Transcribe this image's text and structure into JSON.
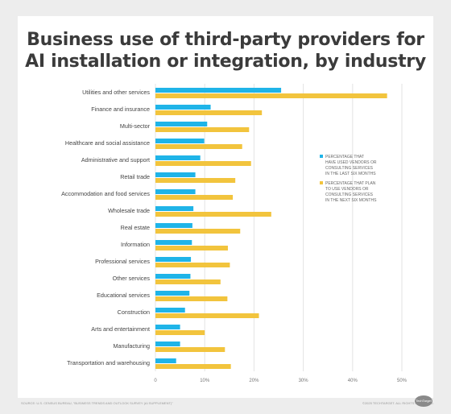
{
  "chart_data": {
    "type": "bar",
    "title_lines": [
      "Business use of third-party providers for",
      "AI installation or integration, by industry"
    ],
    "categories": [
      "Utilities and other services",
      "Finance and insurance",
      "Multi-sector",
      "Healthcare and social assistance",
      "Administrative and support",
      "Retail trade",
      "Accommodation and food services",
      "Wholesale trade",
      "Real estate",
      "Information",
      "Professional services",
      "Other services",
      "Educational services",
      "Construction",
      "Arts and entertainment",
      "Manufacturing",
      "Transportation and warehousing"
    ],
    "series": [
      {
        "name": "PERCENTAGE THAT HAVE USED VENDORS OR CONSULTING SERVICES IN THE LAST SIX MONTHS",
        "legend_lines": [
          "PERCENTAGE THAT",
          "HAVE USED VENDORS OR",
          "CONSULTING SERVICES",
          "IN THE LAST SIX MONTHS"
        ],
        "color": "#1fb4e8",
        "values": [
          25.5,
          11.2,
          10.5,
          9.9,
          9.1,
          8.1,
          8.1,
          7.7,
          7.5,
          7.4,
          7.2,
          7.1,
          6.9,
          6.0,
          5.0,
          5.0,
          4.2
        ]
      },
      {
        "name": "PERCENTAGE THAT PLAN TO USE VENDORS OR CONSULTING SERVICES IN THE NEXT SIX MONTHS",
        "legend_lines": [
          "PERCENTAGE THAT PLAN",
          "TO USE VENDORS OR",
          "CONSULTING SERVICES",
          "IN THE NEXT SIX MONTHS"
        ],
        "color": "#f2c43d",
        "values": [
          47.0,
          21.6,
          19.0,
          17.6,
          19.4,
          16.2,
          15.7,
          23.5,
          17.2,
          14.7,
          15.1,
          13.2,
          14.6,
          21.0,
          10.0,
          14.1,
          15.3
        ]
      }
    ],
    "x_ticks": [
      "0",
      "10%",
      "20%",
      "30%",
      "40%",
      "50%"
    ],
    "xlim": [
      0,
      50
    ],
    "grid": true,
    "legend_position": "right"
  },
  "footer": {
    "source": "SOURCE: U.S. CENSUS BUREAU, \"BUSINESS TRENDS AND OUTLOOK SURVEY (AI SUPPLEMENT)\"",
    "copyright": "©2025 TECHTARGET. ALL RIGHTS RESERVED.",
    "logo": "TechTarget"
  }
}
